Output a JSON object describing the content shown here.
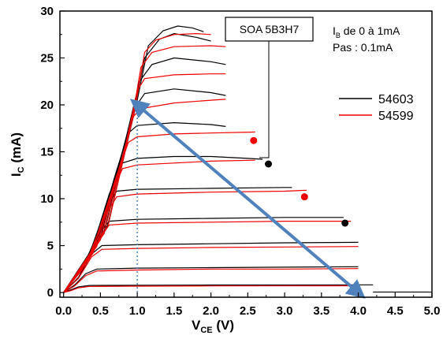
{
  "chart_data": {
    "type": "line",
    "title": "",
    "xlabel_main": "V",
    "xlabel_sub": "CE",
    "xlabel_unit": " (V)",
    "ylabel_main": "I",
    "ylabel_sub": "C",
    "ylabel_unit": " (mA)",
    "xlim": [
      -0.05,
      5.0
    ],
    "ylim": [
      -0.5,
      30
    ],
    "xticks": [
      "0.0",
      "0.5",
      "1.0",
      "1.5",
      "2.0",
      "2.5",
      "3.0",
      "3.5",
      "4.0",
      "4.5",
      "5.0"
    ],
    "yticks": [
      "0",
      "5",
      "10",
      "15",
      "20",
      "25",
      "30"
    ],
    "legend_position": "right",
    "annotation_box": "SOA 5B3H7",
    "ib_label_main": "I",
    "ib_label_sub": "B",
    "ib_label_rest": " de 0 à 1mA",
    "step_label": "Pas : 0.1mA",
    "series": [
      {
        "name": "54603",
        "color": "#000000",
        "curves": [
          {
            "x": [
              0,
              0.1,
              0.2,
              0.35,
              1.0,
              2.0,
              3.0,
              4.0,
              4.2
            ],
            "y": [
              0,
              0.3,
              0.6,
              0.75,
              0.78,
              0.8,
              0.8,
              0.82,
              0.82
            ]
          },
          {
            "x": [
              0,
              0.15,
              0.3,
              0.45,
              1.0,
              2.0,
              3.0,
              4.0
            ],
            "y": [
              0,
              0.8,
              2.0,
              2.5,
              2.6,
              2.65,
              2.7,
              2.75
            ]
          },
          {
            "x": [
              0,
              0.2,
              0.38,
              0.52,
              1.0,
              2.0,
              3.0,
              4.0
            ],
            "y": [
              0,
              1.6,
              4.1,
              5.0,
              5.1,
              5.2,
              5.3,
              5.35
            ]
          },
          {
            "x": [
              0,
              0.25,
              0.45,
              0.62,
              1.0,
              2.0,
              3.0,
              3.8
            ],
            "y": [
              0,
              2.5,
              6.0,
              7.6,
              7.8,
              7.9,
              8.0,
              8.0
            ]
          },
          {
            "x": [
              0,
              0.3,
              0.55,
              0.72,
              1.0,
              2.0,
              3.0,
              3.1
            ],
            "y": [
              0,
              3.0,
              8.5,
              10.8,
              11.0,
              11.1,
              11.2,
              11.2
            ]
          },
          {
            "x": [
              0,
              0.35,
              0.62,
              0.8,
              1.0,
              1.5,
              2.0,
              2.5,
              2.7
            ],
            "y": [
              0,
              3.7,
              10.5,
              13.8,
              14.3,
              14.5,
              14.5,
              14.3,
              14.2
            ]
          },
          {
            "x": [
              0,
              0.4,
              0.7,
              0.88,
              1.0,
              1.5,
              2.0,
              2.2
            ],
            "y": [
              0,
              4.4,
              12.5,
              17.0,
              17.8,
              18.1,
              17.9,
              17.7
            ]
          },
          {
            "x": [
              0,
              0.45,
              0.78,
              0.95,
              1.1,
              1.5,
              2.0,
              2.2
            ],
            "y": [
              0,
              5.1,
              14.5,
              19.5,
              21.2,
              21.7,
              21.3,
              21.0
            ]
          },
          {
            "x": [
              0,
              0.5,
              0.85,
              1.03,
              1.2,
              1.5,
              2.0,
              2.2
            ],
            "y": [
              0,
              5.8,
              16.5,
              22.5,
              24.3,
              25.0,
              24.6,
              24.3
            ]
          },
          {
            "x": [
              0,
              0.55,
              0.93,
              1.1,
              1.3,
              1.5,
              1.8,
              2.0
            ],
            "y": [
              0,
              6.5,
              18.5,
              25.0,
              27.0,
              27.6,
              27.2,
              26.8
            ]
          },
          {
            "x": [
              0,
              0.6,
              1.0,
              1.15,
              1.35,
              1.55,
              1.75,
              1.9
            ],
            "y": [
              0,
              7.2,
              20.5,
              26.3,
              27.9,
              28.4,
              28.2,
              27.8
            ]
          }
        ]
      },
      {
        "name": "54599",
        "color": "#ee0000",
        "curves": [
          {
            "x": [
              0,
              0.1,
              0.2,
              0.35,
              1.0,
              2.0,
              3.0,
              4.0
            ],
            "y": [
              0,
              0.2,
              0.5,
              0.65,
              0.68,
              0.7,
              0.72,
              0.72
            ]
          },
          {
            "x": [
              0,
              0.15,
              0.3,
              0.45,
              1.0,
              2.0,
              3.0,
              4.0
            ],
            "y": [
              0,
              0.7,
              1.8,
              2.3,
              2.4,
              2.5,
              2.5,
              2.55
            ]
          },
          {
            "x": [
              0,
              0.2,
              0.38,
              0.52,
              1.0,
              2.0,
              3.0,
              4.0
            ],
            "y": [
              0,
              1.5,
              3.8,
              4.6,
              4.7,
              4.8,
              4.85,
              4.9
            ]
          },
          {
            "x": [
              0,
              0.25,
              0.45,
              0.62,
              1.0,
              2.0,
              3.0,
              3.9
            ],
            "y": [
              0,
              2.4,
              5.6,
              7.2,
              7.4,
              7.5,
              7.6,
              7.6
            ]
          },
          {
            "x": [
              0,
              0.3,
              0.55,
              0.72,
              1.0,
              2.0,
              3.0,
              3.3
            ],
            "y": [
              0,
              3.0,
              8.0,
              10.2,
              10.5,
              10.7,
              10.8,
              10.9
            ]
          },
          {
            "x": [
              0,
              0.35,
              0.62,
              0.8,
              1.0,
              1.5,
              2.0,
              2.6
            ],
            "y": [
              0,
              3.6,
              10.0,
              13.2,
              13.6,
              13.8,
              14.0,
              14.1
            ]
          },
          {
            "x": [
              0,
              0.4,
              0.7,
              0.88,
              1.0,
              1.5,
              2.0,
              2.6
            ],
            "y": [
              0,
              4.2,
              12.0,
              16.0,
              16.6,
              16.9,
              17.0,
              17.1
            ]
          },
          {
            "x": [
              0,
              0.45,
              0.78,
              0.95,
              1.05,
              1.5,
              2.0,
              2.2
            ],
            "y": [
              0,
              4.9,
              14.0,
              18.8,
              19.6,
              20.2,
              20.5,
              20.6
            ]
          },
          {
            "x": [
              0,
              0.5,
              0.85,
              1.0,
              1.1,
              1.5,
              2.0,
              2.2
            ],
            "y": [
              0,
              5.6,
              16.0,
              21.5,
              22.8,
              23.2,
              23.3,
              23.3
            ]
          },
          {
            "x": [
              0,
              0.55,
              0.92,
              1.05,
              1.2,
              1.5,
              2.0,
              2.2
            ],
            "y": [
              0,
              6.3,
              18.0,
              24.0,
              25.6,
              26.2,
              26.3,
              26.2
            ]
          },
          {
            "x": [
              0,
              0.6,
              0.98,
              1.1,
              1.25,
              1.5,
              1.8,
              2.0
            ],
            "y": [
              0,
              7.0,
              20.0,
              25.6,
              26.9,
              27.5,
              27.6,
              27.5
            ]
          }
        ]
      }
    ],
    "markers": [
      {
        "x": 2.58,
        "y": 16.2,
        "color": "#ee0000"
      },
      {
        "x": 2.78,
        "y": 13.7,
        "color": "#000000"
      },
      {
        "x": 3.27,
        "y": 10.2,
        "color": "#ee0000"
      },
      {
        "x": 3.82,
        "y": 7.4,
        "color": "#000000"
      }
    ],
    "load_line": {
      "x1": 1.0,
      "y1": 20.0,
      "x2": 4.0,
      "y2": 0.0,
      "color": "#4f81bd"
    },
    "vertical_reference": {
      "x": 1.0,
      "y_top": 20.0,
      "color": "#4f81bd"
    }
  }
}
